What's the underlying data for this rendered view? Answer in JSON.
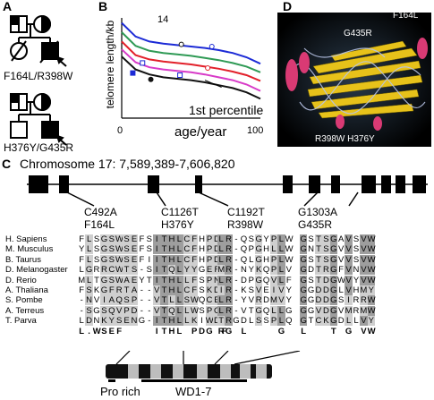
{
  "panels": {
    "a": "A",
    "b": "B",
    "c": "C",
    "d": "D"
  },
  "pedigree": {
    "family1_mutation": "F164L/R398W",
    "family2_mutation": "H376Y/G435R"
  },
  "chart": {
    "ylabel": "telomere length/kb",
    "xlabel": "age/year",
    "ytick_top": "14",
    "xtick_min": "0",
    "xtick_max": "100",
    "annotation": "1st percentile"
  },
  "chart_data": {
    "type": "line",
    "xlim": [
      0,
      100
    ],
    "ylim": [
      0,
      14
    ],
    "series": [
      {
        "color": "#1c2bd6",
        "x": [
          0,
          10,
          20,
          30,
          40,
          50,
          60,
          70,
          80,
          90,
          100
        ],
        "y": [
          13.3,
          11.4,
          10.7,
          10.4,
          10.2,
          10.0,
          9.8,
          9.5,
          9.1,
          8.5,
          7.6
        ]
      },
      {
        "color": "#2f9a55",
        "x": [
          0,
          10,
          20,
          30,
          40,
          50,
          60,
          70,
          80,
          90,
          100
        ],
        "y": [
          12.0,
          10.1,
          9.4,
          9.1,
          8.9,
          8.7,
          8.4,
          8.1,
          7.7,
          7.2,
          6.4
        ]
      },
      {
        "color": "#e2202a",
        "x": [
          0,
          10,
          20,
          30,
          40,
          50,
          60,
          70,
          80,
          90,
          100
        ],
        "y": [
          10.7,
          8.8,
          8.2,
          7.9,
          7.7,
          7.5,
          7.2,
          6.9,
          6.5,
          6.0,
          5.2
        ]
      },
      {
        "color": "#d83bc8",
        "x": [
          0,
          10,
          20,
          30,
          40,
          50,
          60,
          70,
          80,
          90,
          100
        ],
        "y": [
          9.6,
          7.8,
          7.1,
          6.8,
          6.6,
          6.4,
          6.1,
          5.7,
          5.3,
          4.7,
          3.8
        ]
      },
      {
        "color": "#111111",
        "x": [
          0,
          10,
          20,
          30,
          40,
          50,
          60,
          70,
          80,
          90,
          100
        ],
        "y": [
          8.6,
          6.8,
          6.1,
          5.7,
          5.5,
          5.3,
          5.0,
          4.6,
          4.2,
          3.6,
          2.7
        ]
      }
    ],
    "points": [
      {
        "x": 15,
        "y": 7.7,
        "shape": "open-square",
        "color": "#1c2bd6"
      },
      {
        "x": 8,
        "y": 6.3,
        "shape": "filled-square",
        "color": "#1c2bd6"
      },
      {
        "x": 21,
        "y": 5.4,
        "shape": "filled-circle",
        "color": "#111111"
      },
      {
        "x": 43,
        "y": 10.3,
        "shape": "open-circle",
        "color": "#111111"
      },
      {
        "x": 65,
        "y": 10.0,
        "shape": "open-circle",
        "color": "#1c2bd6"
      },
      {
        "x": 42,
        "y": 6.0,
        "shape": "open-square",
        "color": "#1c2bd6"
      },
      {
        "x": 62,
        "y": 7.0,
        "shape": "open-circle",
        "color": "#e2202a"
      }
    ]
  },
  "structure": {
    "label_top_right": "F164L",
    "label_top_mid": "G435R",
    "label_bottom": "R398W H376Y"
  },
  "gene": {
    "title": "Chromosome 17: 7,589,389-7,606,820",
    "mutations": [
      {
        "nt": "C492A",
        "aa": "F164L"
      },
      {
        "nt": "C1126T",
        "aa": "H376Y"
      },
      {
        "nt": "C1192T",
        "aa": "R398W"
      },
      {
        "nt": "G1303A",
        "aa": "G435R"
      }
    ]
  },
  "alignment": {
    "species": [
      "H. Sapiens",
      "M. Musculus",
      "B. Taurus",
      "D. Melanogaster",
      "D. Rerio",
      "A. Thaliana",
      "S. Pombe",
      "A. Terreus",
      "T. Parva"
    ],
    "blocks": [
      {
        "rows": [
          "FLSGSWSEFS",
          "YLSGSWSEFS",
          "FLSGSWSEFI",
          "LGRRCWTS-S",
          "MLTGSWAEYT",
          "FSKGFRTA--",
          "-NVIAQSP--",
          "-SGSQVPD--",
          "LDNKYSENG-"
        ],
        "consensus": [
          "L",
          ".",
          "W",
          "S",
          "E",
          "F"
        ]
      },
      {
        "rows": [
          "ITHLCFHPDG",
          "ITHLCFHPDG",
          "ITHLCFHPDG",
          "ITQLYYGEFG",
          "ITHLLFSPNG",
          "VTHLCFSKDG",
          "VTLLSWQCEG",
          "VTQLLWSPCG",
          "ITHLLKIWDT"
        ],
        "consensus": [
          "I",
          "T",
          "H",
          "L",
          "F",
          "P",
          "D",
          "G"
        ]
      },
      {
        "rows": [
          "LR-QSGYPLW",
          "LR-QPGHLLW",
          "LR-QLGHPLW",
          "MR-NYKQPLV",
          "LR-DPGQVLF",
          "IR-KSVEIVY",
          "LR-YVRDMVY",
          "LR-VTGQLLG",
          "TRGDLSSPLQ"
        ],
        "consensus": [
          "R",
          "G",
          "G",
          "L"
        ]
      },
      {
        "rows": [
          "GSTSGAVSVW",
          "GNTSGVVSVW",
          "GSTSGVVSVW",
          "GDTRGFVNVW",
          "GSTDGWVYVW",
          "GGDDGLVHMY",
          "GGDDGSIRRW",
          "GGVDGVMRMW",
          "GTCKGDLLVY"
        ],
        "consensus": [
          "L",
          "T",
          "G",
          "V",
          "W"
        ]
      }
    ]
  },
  "protein": {
    "pro_label": "Pro rich",
    "wd_label": "WD1-7"
  }
}
